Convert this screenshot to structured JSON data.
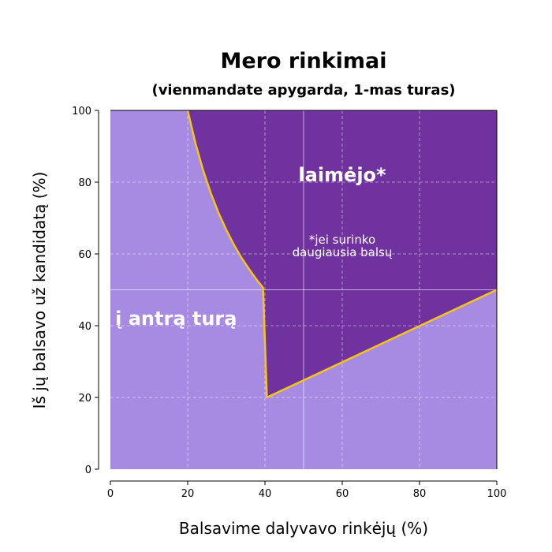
{
  "chart_data": {
    "type": "area",
    "title": "Mero rinkimai",
    "subtitle": "(vienmandate apygarda, 1-mas turas)",
    "xlabel": "Balsavime dalyvavo rinkėjų (%)",
    "ylabel": "Iš jų balsavo už kandidatą (%)",
    "xlim": [
      0,
      100
    ],
    "ylim": [
      0,
      100
    ],
    "xticks": [
      "0",
      "20",
      "40",
      "60",
      "80",
      "100"
    ],
    "yticks": [
      "0",
      "20",
      "40",
      "60",
      "80",
      "100"
    ],
    "grid": true,
    "region_labels": {
      "winner": "laimėjo*",
      "runoff": "į antrą turą"
    },
    "note_lines": [
      "*jei surinko",
      "daugiausia balsų"
    ],
    "boundary": [
      {
        "x": 20,
        "y": 100
      },
      {
        "x": 22,
        "y": 90.9
      },
      {
        "x": 24,
        "y": 83.3
      },
      {
        "x": 26,
        "y": 76.9
      },
      {
        "x": 28,
        "y": 71.4
      },
      {
        "x": 30,
        "y": 66.7
      },
      {
        "x": 32,
        "y": 62.5
      },
      {
        "x": 34,
        "y": 58.8
      },
      {
        "x": 36,
        "y": 55.6
      },
      {
        "x": 38,
        "y": 52.6
      },
      {
        "x": 39.5,
        "y": 50.6
      },
      {
        "x": 40.5,
        "y": 20
      },
      {
        "x": 100,
        "y": 50
      }
    ],
    "colors": {
      "runoff_area": "#a78be2",
      "winner_area": "#70329e",
      "boundary_line": "#f5c518",
      "grid": "#ffffff"
    }
  }
}
